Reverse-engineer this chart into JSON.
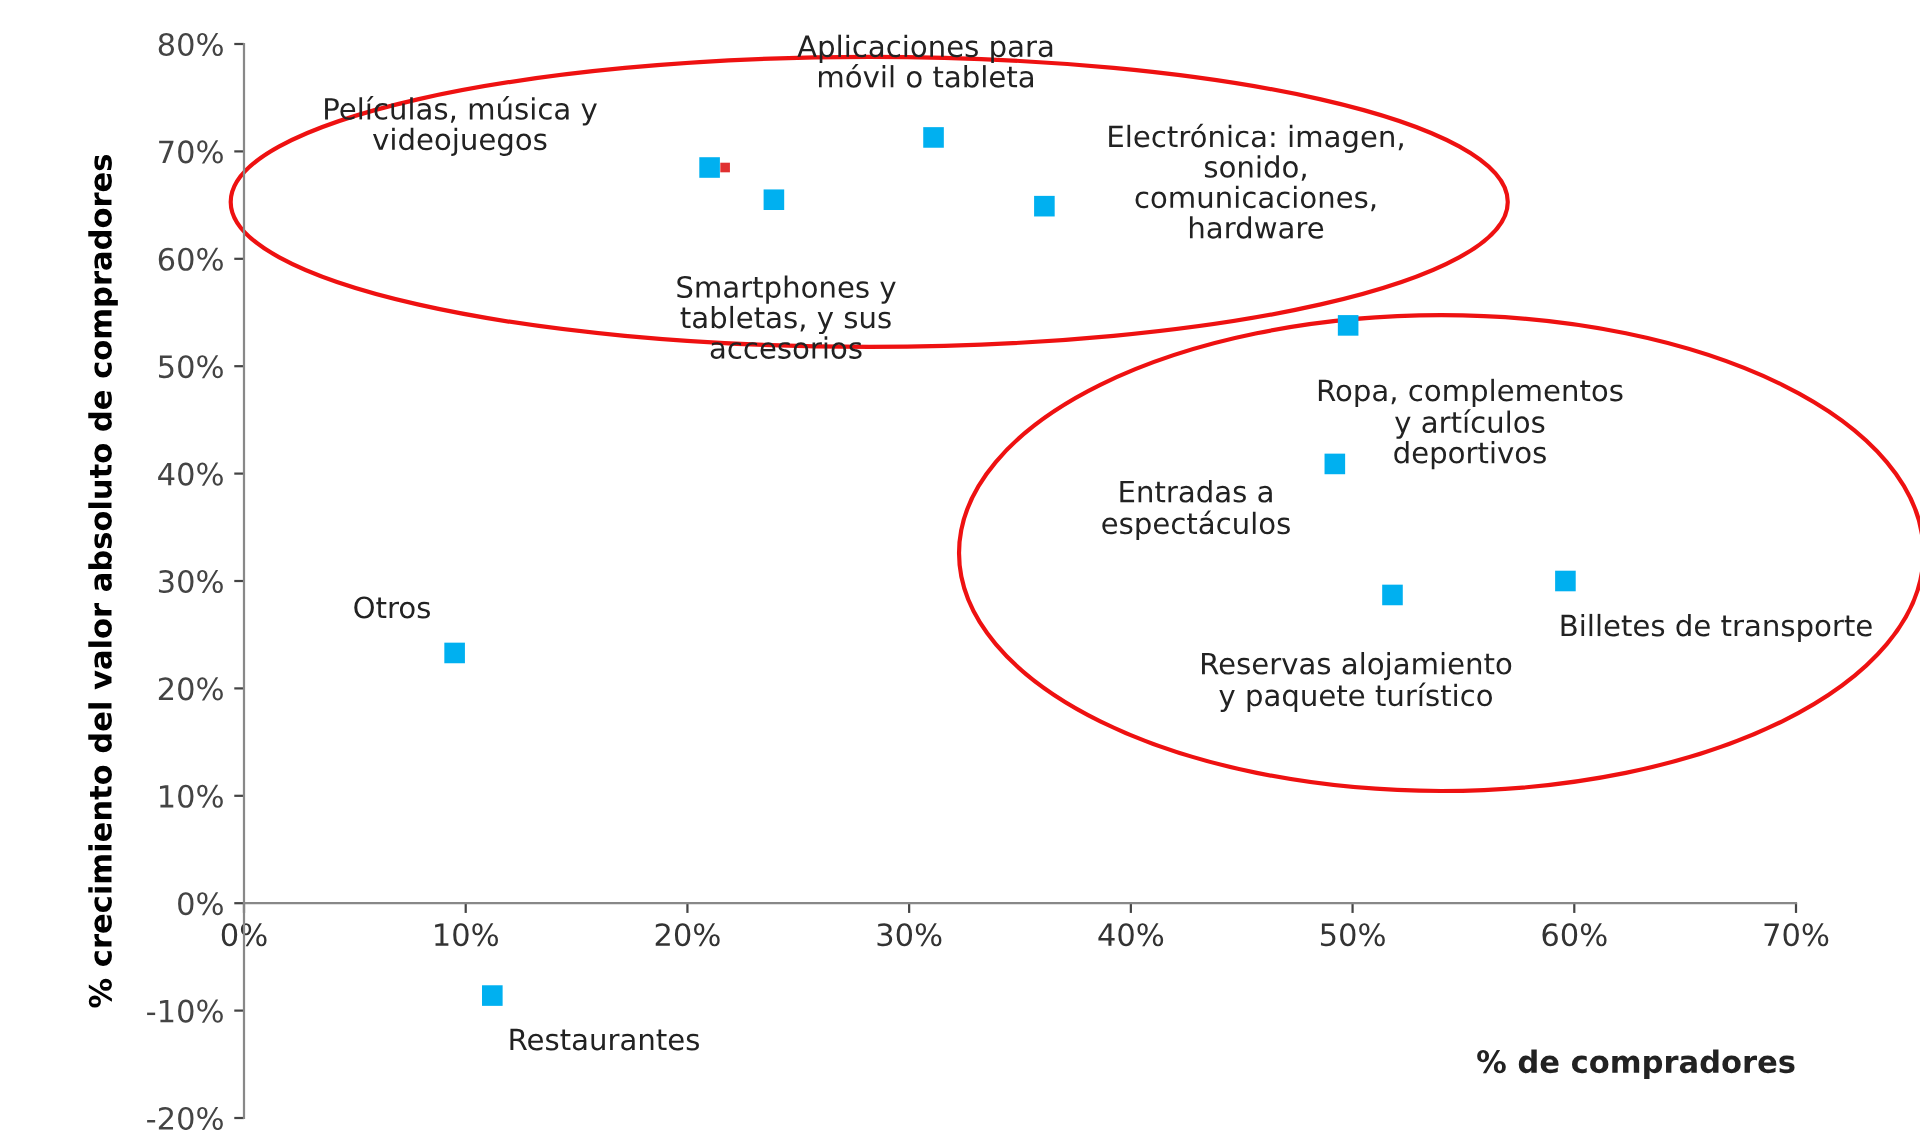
{
  "chart_data": {
    "type": "scatter",
    "xlabel": "% de compradores",
    "ylabel": "% crecimiento del valor absoluto de compradores",
    "series": [
      {
        "color": "#00b0f0",
        "x": [
          21.0,
          23.9,
          31.1,
          36.1,
          49.8,
          49.2,
          51.8,
          59.6,
          9.5,
          11.2
        ],
        "values": [
          68.5,
          65.5,
          71.3,
          64.9,
          53.8,
          40.9,
          28.7,
          30.0,
          23.3,
          -8.6
        ]
      },
      {
        "color": "#e03030",
        "x": [
          21.7
        ],
        "values": [
          68.5
        ]
      }
    ],
    "annotations": [
      "Películas, música y\nvideojuegos",
      "Smartphones y\ntabletas, y sus\naccesorios",
      "Aplicaciones para\nmóvil o tableta",
      "Electrónica: imagen,\nsonido,\ncomunicaciones,\nhardware",
      "Ropa, complementos\ny artículos\ndeportivos",
      "Entradas a\nespectáculos",
      "Reservas alojamiento\ny paquete turístico",
      "Billetes de transporte",
      "Otros",
      "Restaurantes"
    ],
    "xlim": [
      0,
      70
    ],
    "xticks": [
      {
        "value": 0,
        "label": "0%"
      },
      {
        "value": 10,
        "label": "10%"
      },
      {
        "value": 20,
        "label": "20%"
      },
      {
        "value": 30,
        "label": "30%"
      },
      {
        "value": 40,
        "label": "40%"
      },
      {
        "value": 50,
        "label": "50%"
      },
      {
        "value": 60,
        "label": "60%"
      },
      {
        "value": 70,
        "label": "70%"
      }
    ],
    "ylim": [
      -20,
      80
    ],
    "yticks": [
      {
        "value": -20,
        "label": "-20%"
      },
      {
        "value": -10,
        "label": "-10%"
      },
      {
        "value": 0,
        "label": "0%"
      },
      {
        "value": 10,
        "label": "10%"
      },
      {
        "value": 20,
        "label": "20%"
      },
      {
        "value": 30,
        "label": "30%"
      },
      {
        "value": 40,
        "label": "40%"
      },
      {
        "value": 50,
        "label": "50%"
      },
      {
        "value": 60,
        "label": "60%"
      },
      {
        "value": 70,
        "label": "70%"
      },
      {
        "value": 80,
        "label": "80%"
      }
    ],
    "marker": "square",
    "grid": false,
    "legend": false
  }
}
